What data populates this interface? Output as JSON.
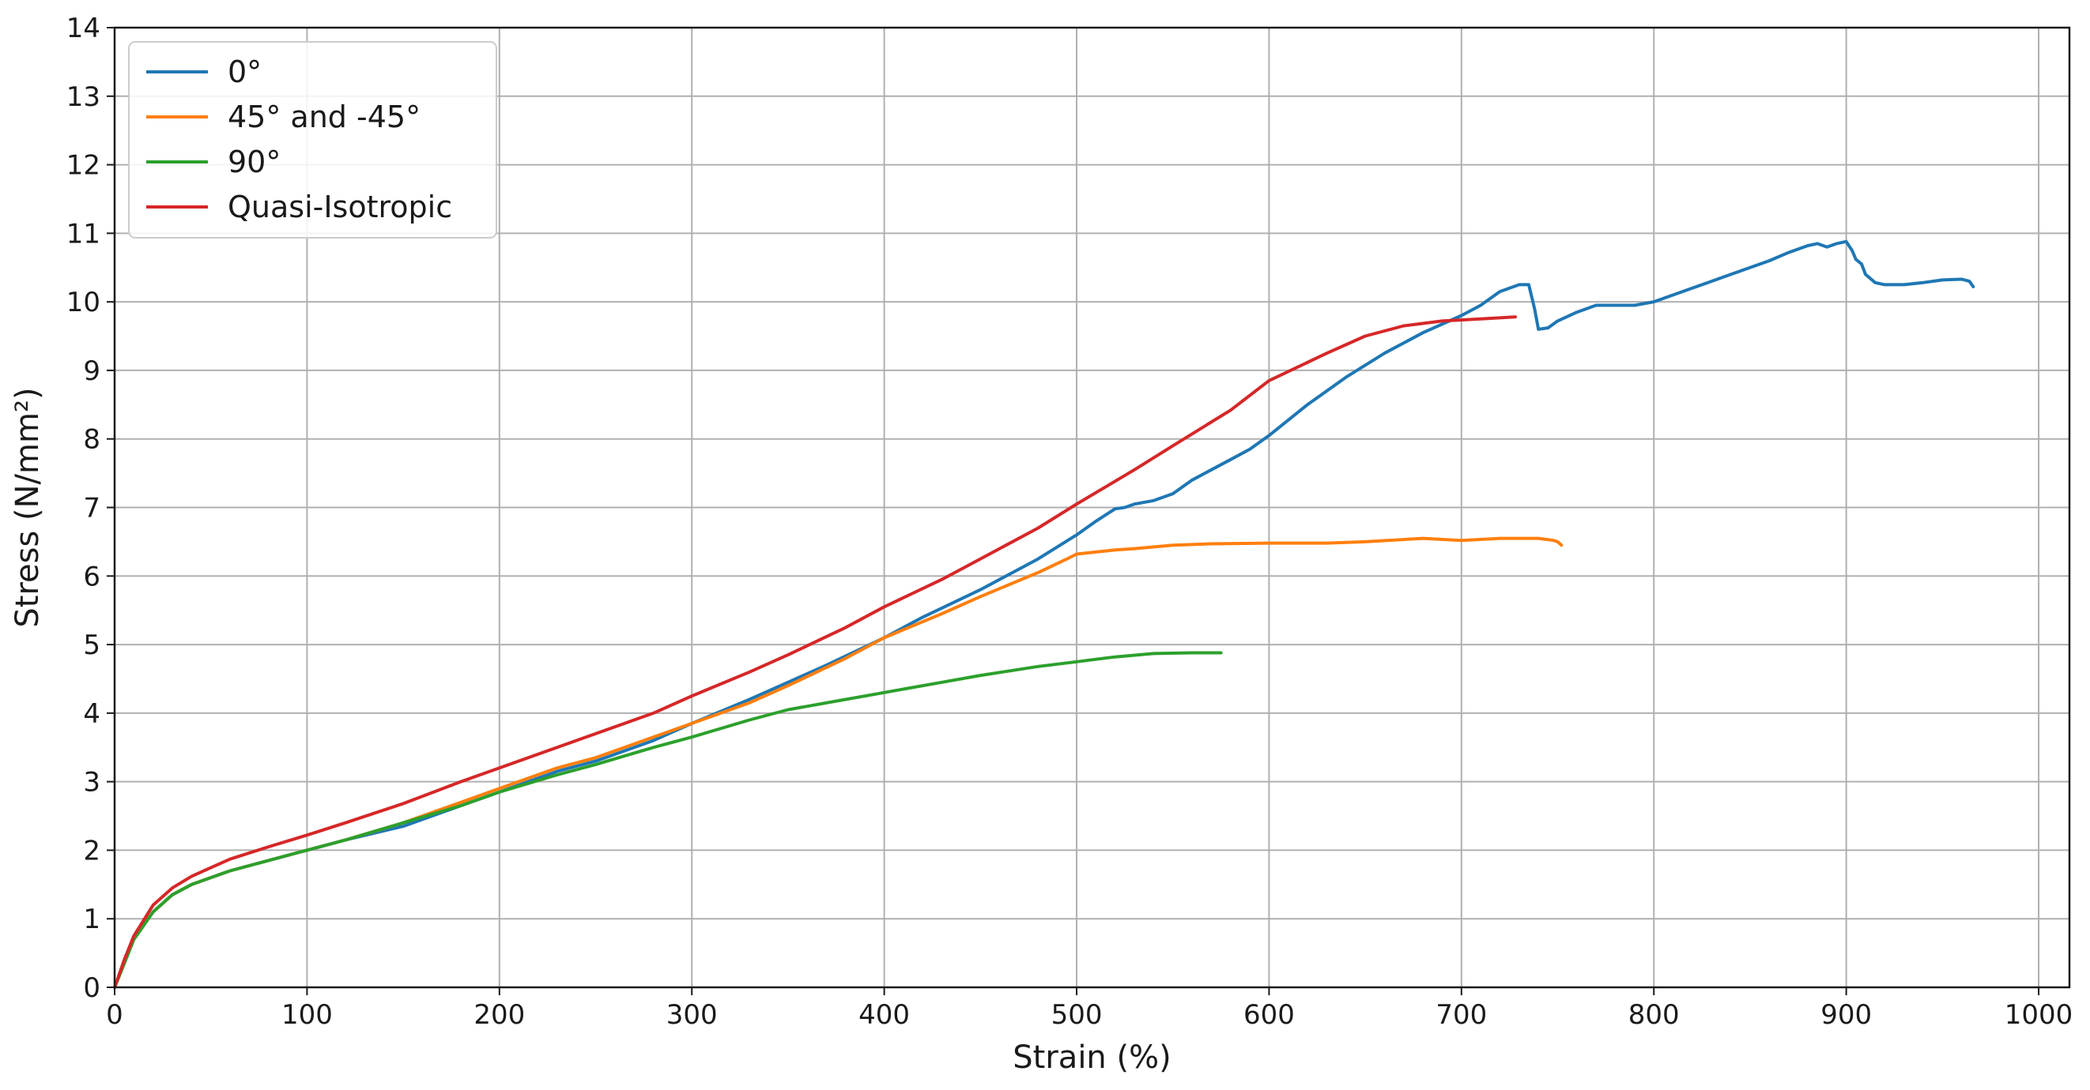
{
  "chart_data": {
    "type": "line",
    "title": "",
    "xlabel": "Strain (%)",
    "ylabel": "Stress (N/mm²)",
    "xlim": [
      0,
      1016
    ],
    "ylim": [
      0,
      14
    ],
    "xticks": [
      0,
      100,
      200,
      300,
      400,
      500,
      600,
      700,
      800,
      900,
      1000
    ],
    "yticks": [
      0,
      1,
      2,
      3,
      4,
      5,
      6,
      7,
      8,
      9,
      10,
      11,
      12,
      13,
      14
    ],
    "grid": true,
    "legend_position": "top-left",
    "series": [
      {
        "name": "0°",
        "color": "#1f77b4",
        "x": [
          0,
          5,
          10,
          20,
          30,
          40,
          60,
          80,
          100,
          120,
          150,
          180,
          200,
          230,
          250,
          280,
          300,
          330,
          350,
          370,
          400,
          420,
          450,
          480,
          500,
          510,
          520,
          525,
          530,
          540,
          550,
          560,
          570,
          580,
          590,
          600,
          620,
          640,
          660,
          680,
          700,
          710,
          720,
          725,
          730,
          735,
          738,
          740,
          745,
          750,
          760,
          770,
          780,
          790,
          800,
          820,
          840,
          860,
          870,
          880,
          885,
          890,
          895,
          900,
          903,
          905,
          908,
          910,
          915,
          920,
          930,
          940,
          950,
          960,
          964,
          966
        ],
        "y": [
          0,
          0.35,
          0.7,
          1.1,
          1.35,
          1.5,
          1.7,
          1.85,
          2.0,
          2.15,
          2.35,
          2.65,
          2.85,
          3.15,
          3.3,
          3.6,
          3.85,
          4.2,
          4.45,
          4.7,
          5.1,
          5.4,
          5.8,
          6.25,
          6.6,
          6.8,
          6.98,
          7.0,
          7.05,
          7.1,
          7.2,
          7.4,
          7.55,
          7.7,
          7.85,
          8.05,
          8.5,
          8.9,
          9.25,
          9.55,
          9.8,
          9.95,
          10.15,
          10.2,
          10.25,
          10.25,
          9.9,
          9.6,
          9.62,
          9.72,
          9.85,
          9.95,
          9.95,
          9.95,
          10.0,
          10.2,
          10.4,
          10.6,
          10.72,
          10.82,
          10.85,
          10.8,
          10.85,
          10.88,
          10.75,
          10.62,
          10.55,
          10.4,
          10.28,
          10.25,
          10.25,
          10.28,
          10.32,
          10.33,
          10.3,
          10.22
        ]
      },
      {
        "name": "45° and -45°",
        "color": "#ff7f0e",
        "x": [
          0,
          5,
          10,
          20,
          30,
          40,
          60,
          80,
          100,
          120,
          150,
          180,
          200,
          230,
          250,
          280,
          300,
          330,
          350,
          380,
          400,
          430,
          450,
          480,
          495,
          500,
          510,
          520,
          530,
          550,
          570,
          600,
          630,
          650,
          680,
          700,
          720,
          740,
          748,
          750,
          752
        ],
        "y": [
          0,
          0.35,
          0.7,
          1.1,
          1.35,
          1.5,
          1.7,
          1.85,
          2.0,
          2.15,
          2.4,
          2.7,
          2.9,
          3.2,
          3.35,
          3.65,
          3.85,
          4.15,
          4.4,
          4.8,
          5.1,
          5.45,
          5.7,
          6.05,
          6.25,
          6.32,
          6.35,
          6.38,
          6.4,
          6.45,
          6.47,
          6.48,
          6.48,
          6.5,
          6.55,
          6.52,
          6.55,
          6.55,
          6.52,
          6.5,
          6.45
        ]
      },
      {
        "name": "90°",
        "color": "#2ca02c",
        "x": [
          0,
          5,
          10,
          20,
          30,
          40,
          60,
          80,
          100,
          120,
          150,
          180,
          200,
          230,
          250,
          280,
          300,
          330,
          350,
          380,
          400,
          430,
          450,
          480,
          500,
          520,
          540,
          560,
          575
        ],
        "y": [
          0,
          0.35,
          0.7,
          1.1,
          1.35,
          1.5,
          1.7,
          1.85,
          2.0,
          2.15,
          2.4,
          2.65,
          2.85,
          3.1,
          3.25,
          3.5,
          3.65,
          3.9,
          4.05,
          4.2,
          4.3,
          4.45,
          4.55,
          4.68,
          4.75,
          4.82,
          4.87,
          4.88,
          4.88
        ]
      },
      {
        "name": "Quasi-Isotropic",
        "color": "#d62728",
        "x": [
          0,
          5,
          10,
          20,
          30,
          40,
          60,
          80,
          100,
          120,
          150,
          180,
          200,
          230,
          250,
          280,
          300,
          330,
          350,
          380,
          400,
          430,
          450,
          480,
          500,
          530,
          550,
          580,
          600,
          630,
          650,
          670,
          690,
          710,
          728
        ],
        "y": [
          0,
          0.4,
          0.75,
          1.2,
          1.45,
          1.62,
          1.87,
          2.05,
          2.22,
          2.4,
          2.68,
          3.0,
          3.2,
          3.5,
          3.7,
          4.0,
          4.25,
          4.6,
          4.85,
          5.25,
          5.55,
          5.95,
          6.25,
          6.7,
          7.05,
          7.55,
          7.9,
          8.42,
          8.85,
          9.25,
          9.5,
          9.65,
          9.72,
          9.75,
          9.78
        ]
      }
    ]
  }
}
